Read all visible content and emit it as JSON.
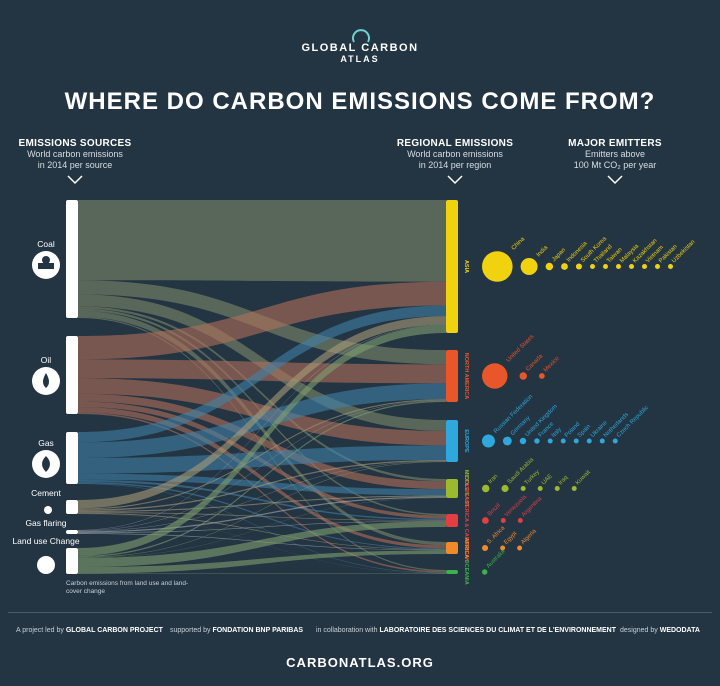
{
  "logo": {
    "line1": "GLOBAL CARBON",
    "line2": "ATLAS"
  },
  "title": "WHERE DO CARBON EMISSIONS COME FROM?",
  "columns": {
    "sources": {
      "heading": "EMISSIONS SOURCES",
      "sub1": "World carbon emissions",
      "sub2": "in 2014 per source"
    },
    "regions": {
      "heading": "REGIONAL EMISSIONS",
      "sub1": "World carbon emissions",
      "sub2": "in 2014 per region"
    },
    "emitters": {
      "heading": "MAJOR EMITTERS",
      "sub1": "Emitters above",
      "sub2": "100 Mt CO₂ per year"
    }
  },
  "sources": [
    {
      "id": "coal",
      "label": "Coal",
      "icon": "coal-cart-icon",
      "share": 0.36
    },
    {
      "id": "oil",
      "label": "Oil",
      "icon": "oil-drop-icon",
      "share": 0.28
    },
    {
      "id": "gas",
      "label": "Gas",
      "icon": "gas-flame-icon",
      "share": 0.18
    },
    {
      "id": "cement",
      "label": "Cement",
      "icon": "cement-icon",
      "share": 0.05
    },
    {
      "id": "flaring",
      "label": "Gas flaring",
      "icon": "flaring-icon",
      "share": 0.01
    },
    {
      "id": "landuse",
      "label": "Land use Change",
      "icon": "land-use-icon",
      "share": 0.06
    }
  ],
  "land_note": "Carbon emissions from land use and land-cover change",
  "regions": [
    {
      "id": "asia",
      "label": "ASIA",
      "color": "#f0d20f",
      "share": 0.38,
      "emitters": [
        "China",
        "India",
        "Japan",
        "Indonesia",
        "South Korea",
        "Thailand",
        "Taiwan",
        "Malaysia",
        "Kazakhstan",
        "Vietnam",
        "Pakistan",
        "Uzbekistan"
      ],
      "sizes": [
        0.9,
        0.5,
        0.22,
        0.2,
        0.18,
        0.14,
        0.13,
        0.12,
        0.11,
        0.1,
        0.09,
        0.08
      ]
    },
    {
      "id": "na",
      "label": "NORTH AMERICA",
      "color": "#e8562a",
      "share": 0.17,
      "emitters": [
        "United States",
        "Canada",
        "Mexico"
      ],
      "sizes": [
        0.75,
        0.22,
        0.17
      ]
    },
    {
      "id": "europe",
      "label": "EUROPE",
      "color": "#2fa9dd",
      "share": 0.15,
      "emitters": [
        "Russian Federation",
        "Germany",
        "United Kingdom",
        "France",
        "Italy",
        "Poland",
        "Spain",
        "Ukraine",
        "Netherlands",
        "Czech Republic"
      ],
      "sizes": [
        0.38,
        0.26,
        0.19,
        0.16,
        0.15,
        0.14,
        0.13,
        0.12,
        0.11,
        0.09
      ]
    },
    {
      "id": "me",
      "label": "MIDDLE EAST",
      "color": "#9db92e",
      "share": 0.065,
      "emitters": [
        "Iran",
        "Saudi Arabia",
        "Turkey",
        "UAE",
        "Iraq",
        "Kuwait"
      ],
      "sizes": [
        0.22,
        0.21,
        0.15,
        0.12,
        0.1,
        0.09
      ]
    },
    {
      "id": "latam",
      "label": "LATIN AMERICA & CARIBBEAN",
      "color": "#e33f42",
      "share": 0.05,
      "emitters": [
        "Brazil",
        "Venezuela",
        "Argentina"
      ],
      "sizes": [
        0.2,
        0.12,
        0.11
      ]
    },
    {
      "id": "africa",
      "label": "AFRICA",
      "color": "#f08a2a",
      "share": 0.045,
      "emitters": [
        "S. Africa",
        "Egypt",
        "Algeria"
      ],
      "sizes": [
        0.18,
        0.12,
        0.1
      ]
    },
    {
      "id": "oceania",
      "label": "OCEANIA",
      "color": "#3bb24a",
      "share": 0.02,
      "emitters": [
        "Australia"
      ],
      "sizes": [
        0.16
      ]
    }
  ],
  "footer": {
    "led_pre": "A project led by",
    "led": "GLOBAL CARBON PROJECT",
    "sup_pre": "supported by",
    "sup": "FONDATION BNP PARIBAS",
    "col_pre": "in collaboration with",
    "col": "LABORATOIRE DES SCIENCES DU CLIMAT ET DE L'ENVIRONNEMENT",
    "des_pre": "designed by",
    "des": "WEDODATA"
  },
  "url": "CARBONATLAS.ORG"
}
